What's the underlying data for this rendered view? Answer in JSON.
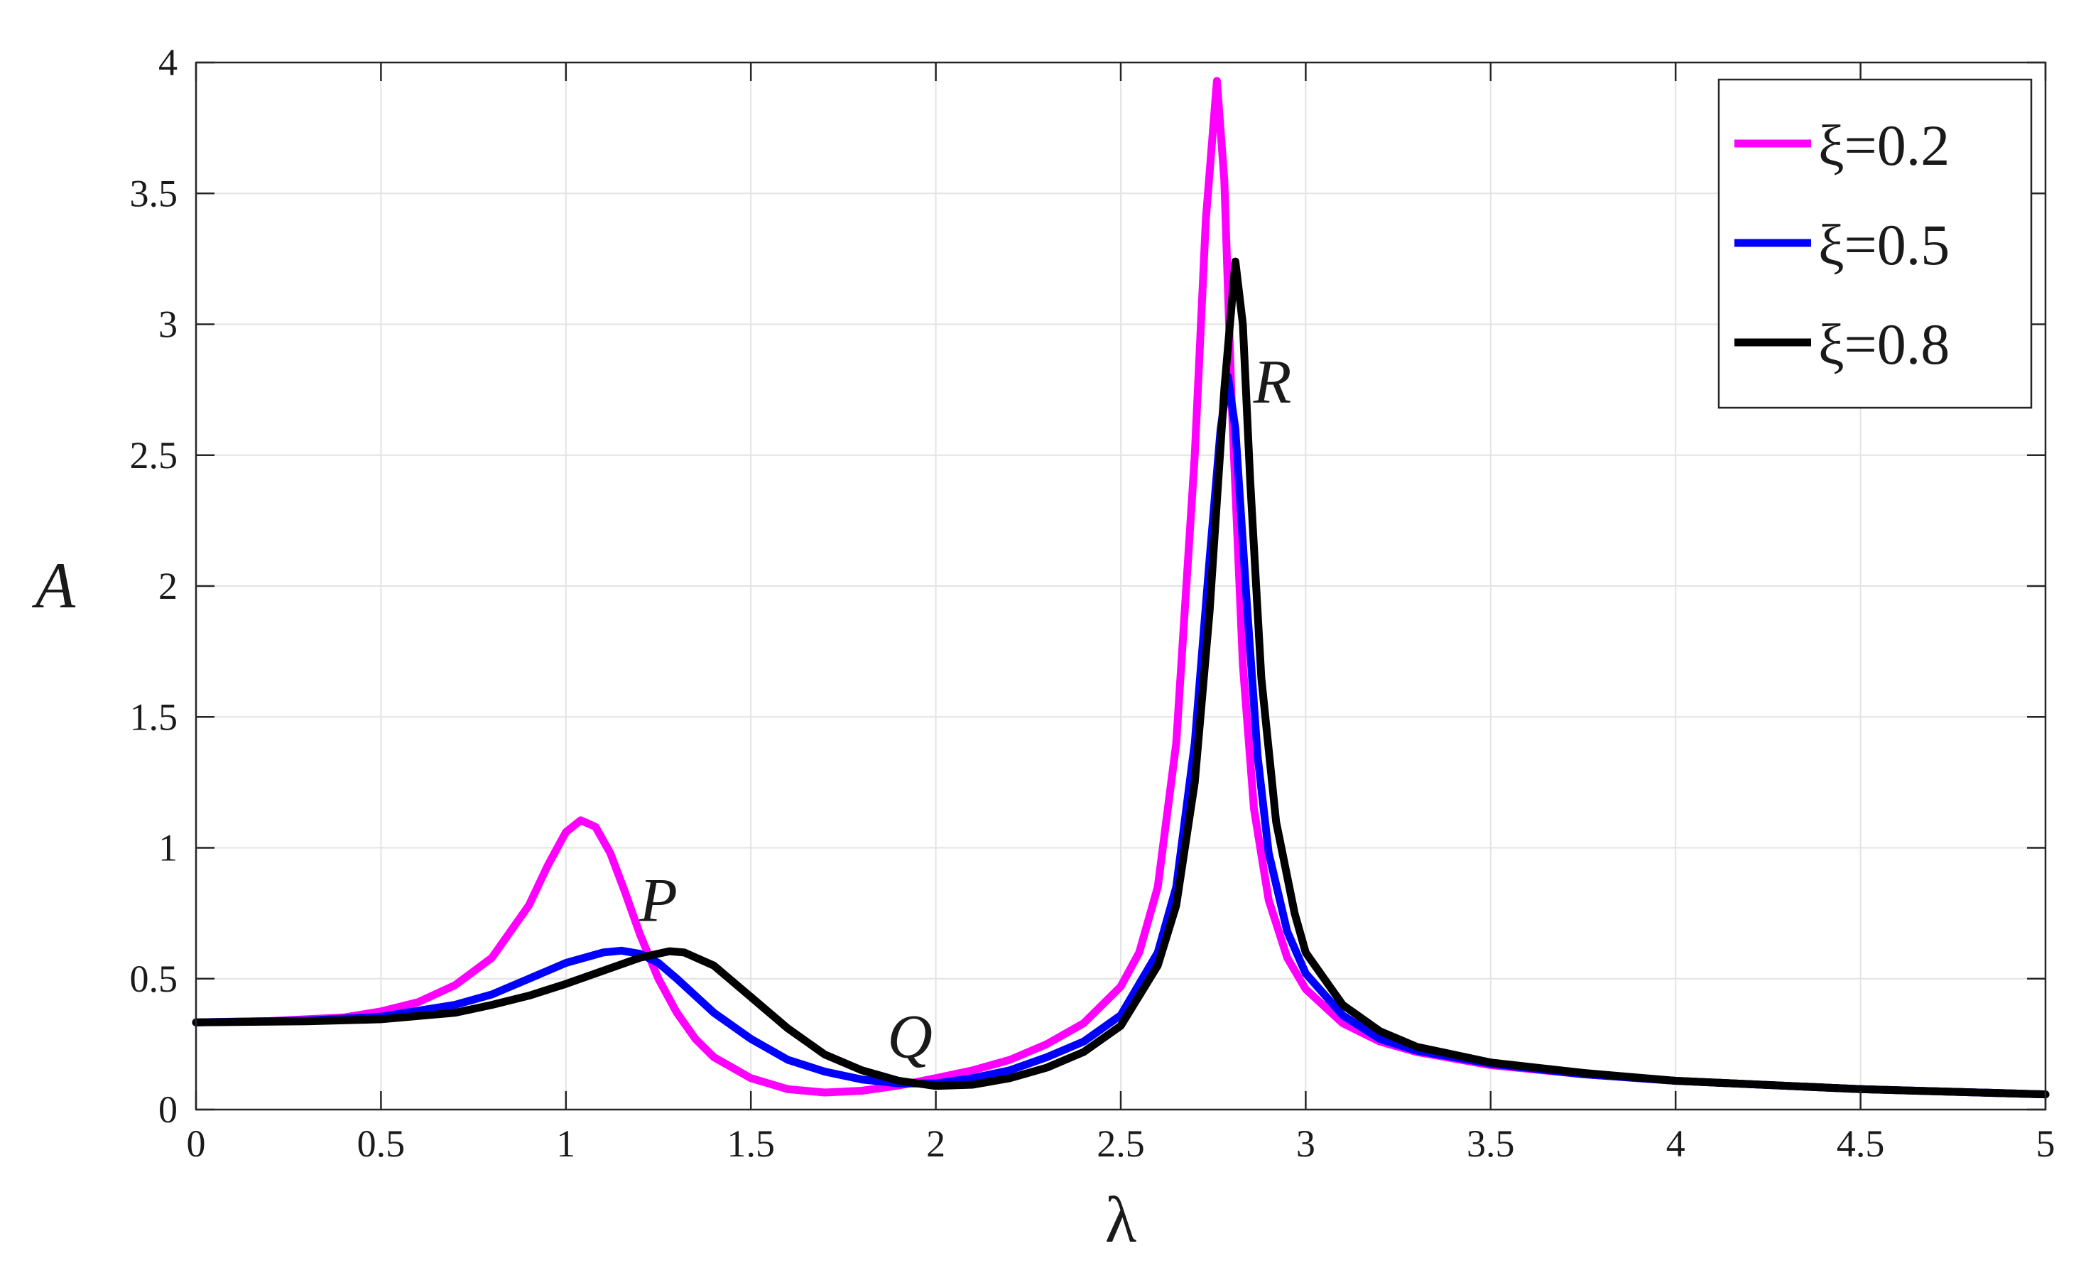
{
  "chart_data": {
    "type": "line",
    "title": "",
    "xlabel": "λ",
    "ylabel": "A",
    "xlim": [
      0,
      5
    ],
    "ylim": [
      0,
      4
    ],
    "xticks": [
      0,
      0.5,
      1,
      1.5,
      2,
      2.5,
      3,
      3.5,
      4,
      4.5,
      5
    ],
    "xtick_labels": [
      "0",
      "0.5",
      "1",
      "1.5",
      "2",
      "2.5",
      "3",
      "3.5",
      "4",
      "4.5",
      "5"
    ],
    "yticks": [
      0,
      0.5,
      1,
      1.5,
      2,
      2.5,
      3,
      3.5,
      4
    ],
    "ytick_labels": [
      "0",
      "0.5",
      "1",
      "1.5",
      "2",
      "2.5",
      "3",
      "3.5",
      "4"
    ],
    "grid": true,
    "legend": "top-right",
    "annotations": [
      {
        "text": "P",
        "x": 1.25,
        "y": 0.72
      },
      {
        "text": "Q",
        "x": 1.93,
        "y": 0.2
      },
      {
        "text": "R",
        "x": 2.91,
        "y": 2.7
      }
    ],
    "series": [
      {
        "name": "ξ=0.2",
        "color": "#ff00ff",
        "points": [
          [
            0,
            0.333
          ],
          [
            0.2,
            0.338
          ],
          [
            0.4,
            0.352
          ],
          [
            0.5,
            0.375
          ],
          [
            0.6,
            0.41
          ],
          [
            0.7,
            0.475
          ],
          [
            0.8,
            0.58
          ],
          [
            0.9,
            0.78
          ],
          [
            0.95,
            0.93
          ],
          [
            1.0,
            1.06
          ],
          [
            1.04,
            1.105
          ],
          [
            1.08,
            1.08
          ],
          [
            1.12,
            0.98
          ],
          [
            1.16,
            0.83
          ],
          [
            1.2,
            0.67
          ],
          [
            1.25,
            0.5
          ],
          [
            1.3,
            0.37
          ],
          [
            1.35,
            0.27
          ],
          [
            1.4,
            0.2
          ],
          [
            1.5,
            0.12
          ],
          [
            1.6,
            0.078
          ],
          [
            1.7,
            0.065
          ],
          [
            1.8,
            0.072
          ],
          [
            1.9,
            0.092
          ],
          [
            2.0,
            0.12
          ],
          [
            2.1,
            0.15
          ],
          [
            2.2,
            0.19
          ],
          [
            2.3,
            0.25
          ],
          [
            2.4,
            0.33
          ],
          [
            2.5,
            0.47
          ],
          [
            2.55,
            0.6
          ],
          [
            2.6,
            0.85
          ],
          [
            2.65,
            1.4
          ],
          [
            2.7,
            2.5
          ],
          [
            2.73,
            3.4
          ],
          [
            2.76,
            3.93
          ],
          [
            2.78,
            3.55
          ],
          [
            2.8,
            2.7
          ],
          [
            2.83,
            1.7
          ],
          [
            2.86,
            1.15
          ],
          [
            2.9,
            0.8
          ],
          [
            2.95,
            0.58
          ],
          [
            3.0,
            0.46
          ],
          [
            3.1,
            0.33
          ],
          [
            3.2,
            0.26
          ],
          [
            3.3,
            0.22
          ],
          [
            3.5,
            0.17
          ],
          [
            3.75,
            0.135
          ],
          [
            4.0,
            0.11
          ],
          [
            4.5,
            0.078
          ],
          [
            5.0,
            0.058
          ]
        ]
      },
      {
        "name": "ξ=0.5",
        "color": "#0000ff",
        "points": [
          [
            0,
            0.333
          ],
          [
            0.3,
            0.34
          ],
          [
            0.5,
            0.355
          ],
          [
            0.7,
            0.4
          ],
          [
            0.8,
            0.44
          ],
          [
            0.9,
            0.5
          ],
          [
            1.0,
            0.56
          ],
          [
            1.1,
            0.6
          ],
          [
            1.15,
            0.607
          ],
          [
            1.2,
            0.595
          ],
          [
            1.25,
            0.56
          ],
          [
            1.3,
            0.5
          ],
          [
            1.4,
            0.37
          ],
          [
            1.5,
            0.27
          ],
          [
            1.6,
            0.19
          ],
          [
            1.7,
            0.145
          ],
          [
            1.8,
            0.115
          ],
          [
            1.9,
            0.1
          ],
          [
            2.0,
            0.1
          ],
          [
            2.1,
            0.12
          ],
          [
            2.2,
            0.15
          ],
          [
            2.3,
            0.2
          ],
          [
            2.4,
            0.26
          ],
          [
            2.5,
            0.36
          ],
          [
            2.6,
            0.6
          ],
          [
            2.65,
            0.85
          ],
          [
            2.7,
            1.4
          ],
          [
            2.74,
            2.1
          ],
          [
            2.77,
            2.6
          ],
          [
            2.79,
            2.8
          ],
          [
            2.81,
            2.6
          ],
          [
            2.84,
            1.95
          ],
          [
            2.87,
            1.35
          ],
          [
            2.9,
            0.98
          ],
          [
            2.95,
            0.68
          ],
          [
            3.0,
            0.52
          ],
          [
            3.1,
            0.36
          ],
          [
            3.2,
            0.27
          ],
          [
            3.3,
            0.225
          ],
          [
            3.5,
            0.175
          ],
          [
            3.75,
            0.135
          ],
          [
            4.0,
            0.11
          ],
          [
            4.5,
            0.078
          ],
          [
            5.0,
            0.058
          ]
        ]
      },
      {
        "name": "ξ=0.8",
        "color": "#000000",
        "points": [
          [
            0,
            0.333
          ],
          [
            0.3,
            0.337
          ],
          [
            0.5,
            0.345
          ],
          [
            0.7,
            0.37
          ],
          [
            0.8,
            0.4
          ],
          [
            0.9,
            0.435
          ],
          [
            1.0,
            0.48
          ],
          [
            1.1,
            0.53
          ],
          [
            1.2,
            0.58
          ],
          [
            1.28,
            0.605
          ],
          [
            1.32,
            0.6
          ],
          [
            1.4,
            0.55
          ],
          [
            1.5,
            0.43
          ],
          [
            1.6,
            0.31
          ],
          [
            1.7,
            0.21
          ],
          [
            1.8,
            0.15
          ],
          [
            1.9,
            0.11
          ],
          [
            2.0,
            0.09
          ],
          [
            2.1,
            0.095
          ],
          [
            2.2,
            0.12
          ],
          [
            2.3,
            0.16
          ],
          [
            2.4,
            0.22
          ],
          [
            2.5,
            0.32
          ],
          [
            2.6,
            0.55
          ],
          [
            2.65,
            0.78
          ],
          [
            2.7,
            1.25
          ],
          [
            2.74,
            1.9
          ],
          [
            2.78,
            2.75
          ],
          [
            2.81,
            3.24
          ],
          [
            2.83,
            3.0
          ],
          [
            2.85,
            2.4
          ],
          [
            2.88,
            1.65
          ],
          [
            2.92,
            1.1
          ],
          [
            2.97,
            0.75
          ],
          [
            3.0,
            0.6
          ],
          [
            3.1,
            0.4
          ],
          [
            3.2,
            0.3
          ],
          [
            3.3,
            0.24
          ],
          [
            3.5,
            0.18
          ],
          [
            3.75,
            0.14
          ],
          [
            4.0,
            0.11
          ],
          [
            4.5,
            0.078
          ],
          [
            5.0,
            0.058
          ]
        ]
      }
    ]
  }
}
